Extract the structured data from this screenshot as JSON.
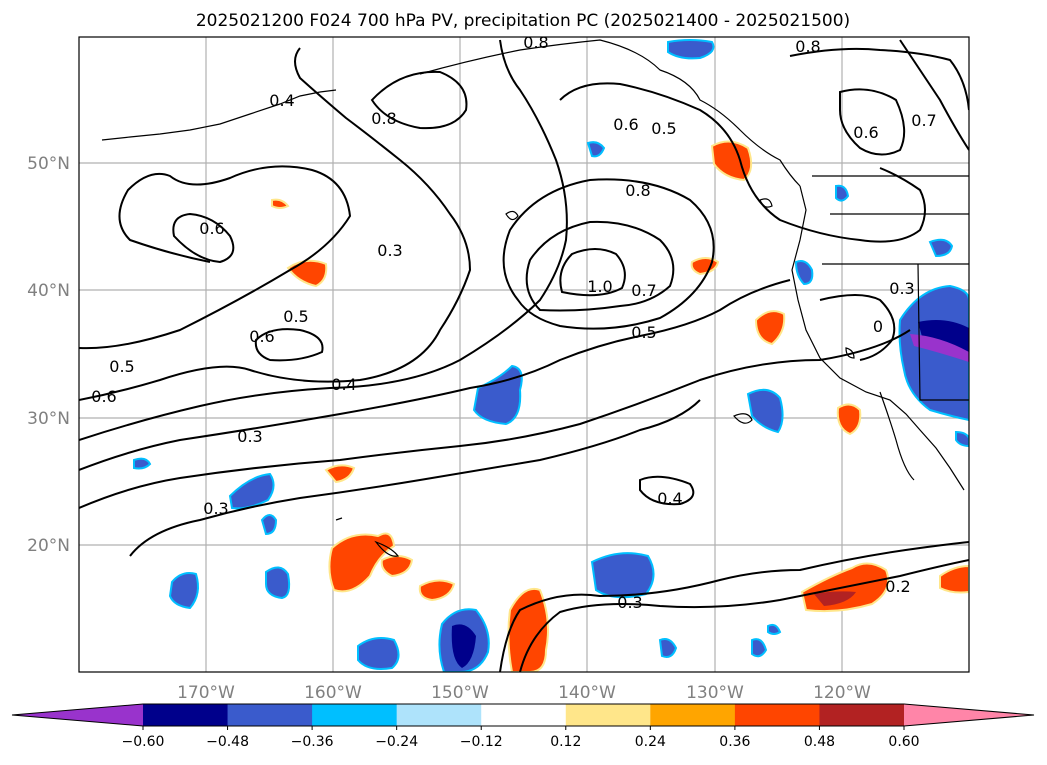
{
  "title": "2025021200 F024 700 hPa PV, precipitation PC (2025021400 - 2025021500)",
  "lat_labels": [
    "50°N",
    "40°N",
    "30°N",
    "20°N"
  ],
  "lon_labels": [
    "170°W",
    "160°W",
    "150°W",
    "140°W",
    "130°W",
    "120°W"
  ],
  "colorbar": {
    "ticks": [
      "−0.60",
      "−0.48",
      "−0.36",
      "−0.24",
      "−0.12",
      "0.12",
      "0.24",
      "0.36",
      "0.48",
      "0.60"
    ],
    "colors": [
      "#9933cc",
      "#00008b",
      "#3a5bcc",
      "#00bfff",
      "#aee3fb",
      "#ffffff",
      "#ffe68a",
      "#ffa500",
      "#ff4500",
      "#b22222",
      "#ff85a8"
    ]
  },
  "contour_labels": [
    "0.8",
    "0.8",
    "0.8",
    "0.4",
    "0.6",
    "0.5",
    "0.6",
    "0.7",
    "0.6",
    "0.8",
    "0.3",
    "1.0",
    "0.7",
    "0.5",
    "0.5",
    "0.6",
    "0.5",
    "0.6",
    "0.4",
    "0.3",
    "0.3",
    "0.4",
    "0.3",
    "0.3",
    "0.2",
    "0"
  ]
}
